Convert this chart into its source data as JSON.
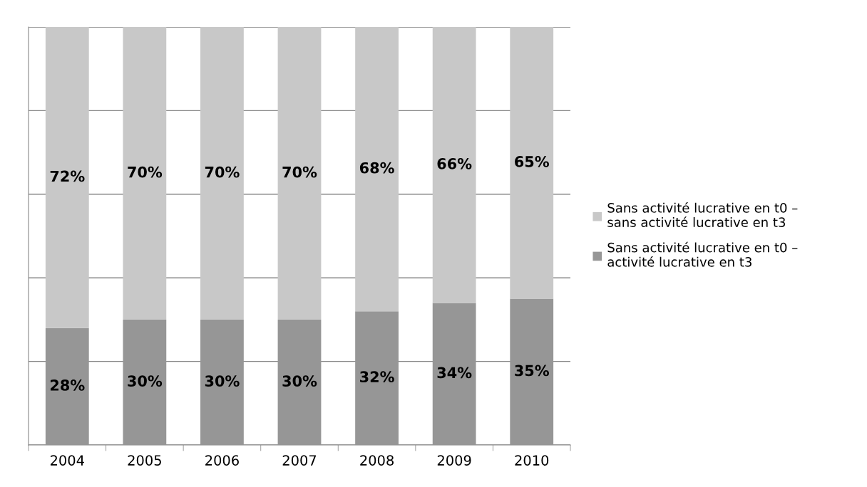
{
  "chart_data": {
    "type": "bar",
    "stacked": true,
    "categories": [
      "2004",
      "2005",
      "2006",
      "2007",
      "2008",
      "2009",
      "2010"
    ],
    "series": [
      {
        "name": "Sans activité lucrative en t0 –\nactivité lucrative en t3",
        "color": "#969696",
        "values": [
          28,
          30,
          30,
          30,
          32,
          34,
          35
        ],
        "value_labels": [
          "28%",
          "30%",
          "30%",
          "30%",
          "32%",
          "34%",
          "35%"
        ]
      },
      {
        "name": "Sans activité lucrative en t0 –\nsans activité lucrative en t3",
        "color": "#c8c8c8",
        "values": [
          72,
          70,
          70,
          70,
          68,
          66,
          65
        ],
        "value_labels": [
          "72%",
          "70%",
          "70%",
          "70%",
          "68%",
          "66%",
          "65%"
        ]
      }
    ],
    "ylim": [
      0,
      100
    ],
    "yticks": [
      {
        "value": 0,
        "label": null
      },
      {
        "value": 20,
        "label": null
      },
      {
        "value": 40,
        "label": null
      },
      {
        "value": 60,
        "label": null
      },
      {
        "value": 80,
        "label": null
      },
      {
        "value": 100,
        "label": null
      }
    ],
    "tick_labels": "x",
    "grid": "y",
    "legend": "right"
  }
}
